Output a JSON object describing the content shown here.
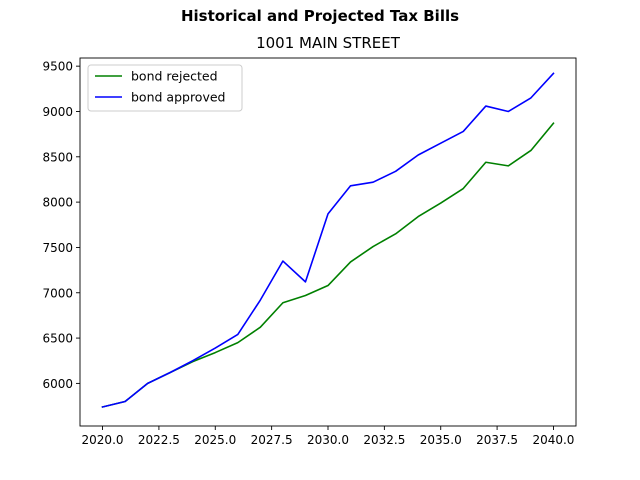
{
  "suptitle": "Historical and Projected Tax Bills",
  "chart_data": {
    "type": "line",
    "title": "1001 MAIN STREET",
    "xlabel": "",
    "ylabel": "",
    "xlim": [
      2019,
      2041
    ],
    "ylim": [
      5530,
      9590
    ],
    "xticks": [
      2020.0,
      2022.5,
      2025.0,
      2027.5,
      2030.0,
      2032.5,
      2035.0,
      2037.5,
      2040.0
    ],
    "xtick_labels": [
      "2020.0",
      "2022.5",
      "2025.0",
      "2027.5",
      "2030.0",
      "2032.5",
      "2035.0",
      "2037.5",
      "2040.0"
    ],
    "yticks": [
      6000,
      6500,
      7000,
      7500,
      8000,
      8500,
      9000,
      9500
    ],
    "ytick_labels": [
      "6000",
      "6500",
      "7000",
      "7500",
      "8000",
      "8500",
      "9000",
      "9500"
    ],
    "grid": false,
    "legend_position": "upper-left",
    "x": [
      2020,
      2021,
      2022,
      2023,
      2024,
      2025,
      2026,
      2027,
      2028,
      2029,
      2030,
      2031,
      2032,
      2033,
      2034,
      2035,
      2036,
      2037,
      2038,
      2039,
      2040
    ],
    "series": [
      {
        "name": "bond rejected",
        "color": "#008000",
        "values": [
          5740,
          5800,
          6000,
          6120,
          6240,
          6340,
          6450,
          6620,
          6890,
          6970,
          7080,
          7340,
          7510,
          7650,
          7840,
          7990,
          8150,
          8440,
          8400,
          8570,
          8870
        ]
      },
      {
        "name": "bond approved",
        "color": "#0000ff",
        "values": [
          5740,
          5800,
          6000,
          6120,
          6250,
          6390,
          6540,
          6920,
          7350,
          7120,
          7870,
          8180,
          8220,
          8340,
          8520,
          8650,
          8780,
          9060,
          9000,
          9150,
          9420
        ]
      }
    ]
  }
}
